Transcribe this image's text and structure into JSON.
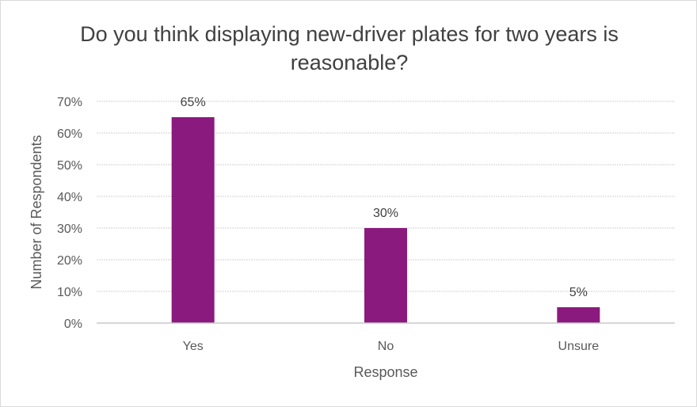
{
  "chart_data": {
    "type": "bar",
    "title": "Do you think displaying new-driver plates for two years is reasonable?",
    "xlabel": "Response",
    "ylabel": "Number of Respondents",
    "categories": [
      "Yes",
      "No",
      "Unsure"
    ],
    "values": [
      65,
      30,
      5
    ],
    "data_labels": [
      "65%",
      "30%",
      "5%"
    ],
    "y_ticks": [
      "0%",
      "10%",
      "20%",
      "30%",
      "40%",
      "50%",
      "60%",
      "70%"
    ],
    "ylim": [
      0,
      70
    ],
    "grid": true,
    "bar_color": "#8B1A7E"
  }
}
